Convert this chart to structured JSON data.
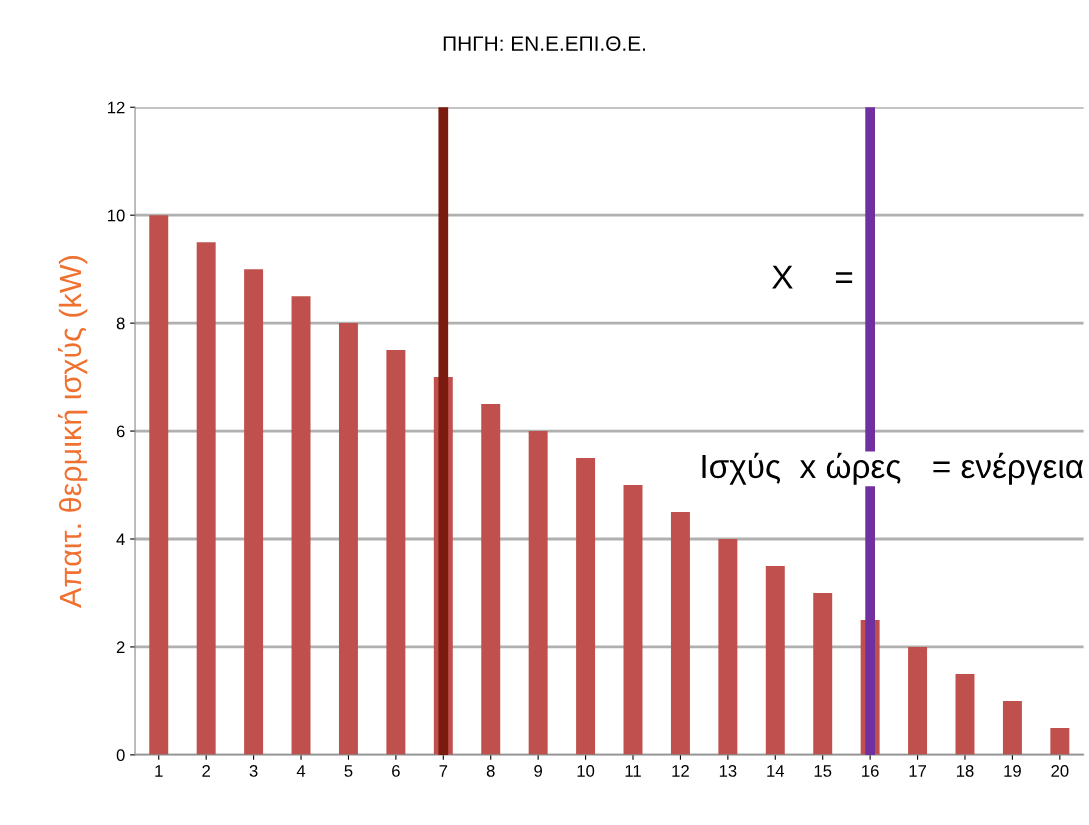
{
  "chart_data": {
    "type": "bar",
    "categories": [
      "1",
      "2",
      "3",
      "4",
      "5",
      "6",
      "7",
      "8",
      "9",
      "10",
      "11",
      "12",
      "13",
      "14",
      "15",
      "16",
      "17",
      "18",
      "19",
      "20"
    ],
    "values": [
      10,
      9.5,
      9,
      8.5,
      8,
      7.5,
      7,
      6.5,
      6,
      5.5,
      5,
      4.5,
      4,
      3.5,
      3,
      2.5,
      2,
      1.5,
      1,
      0.5
    ],
    "color": "#c0504d",
    "ylabel": "Απαιτ. θερμική ισχύς (kW)",
    "ylim": [
      0,
      12
    ],
    "yticks": [
      0,
      2,
      4,
      6,
      8,
      10,
      12
    ],
    "grid": "y",
    "annotations": [
      "ΠΗΓΗ: ΕΝ.Ε.ΕΠΙ.Θ.Ε.",
      "X",
      "=",
      "Ισχύς  x ώρες",
      "= ενέργεια"
    ],
    "ref_lines": [
      {
        "axis": "x",
        "value": "7",
        "color": "#7b1a0e"
      },
      {
        "axis": "x",
        "value": "16",
        "color": "#7030a0"
      }
    ]
  }
}
